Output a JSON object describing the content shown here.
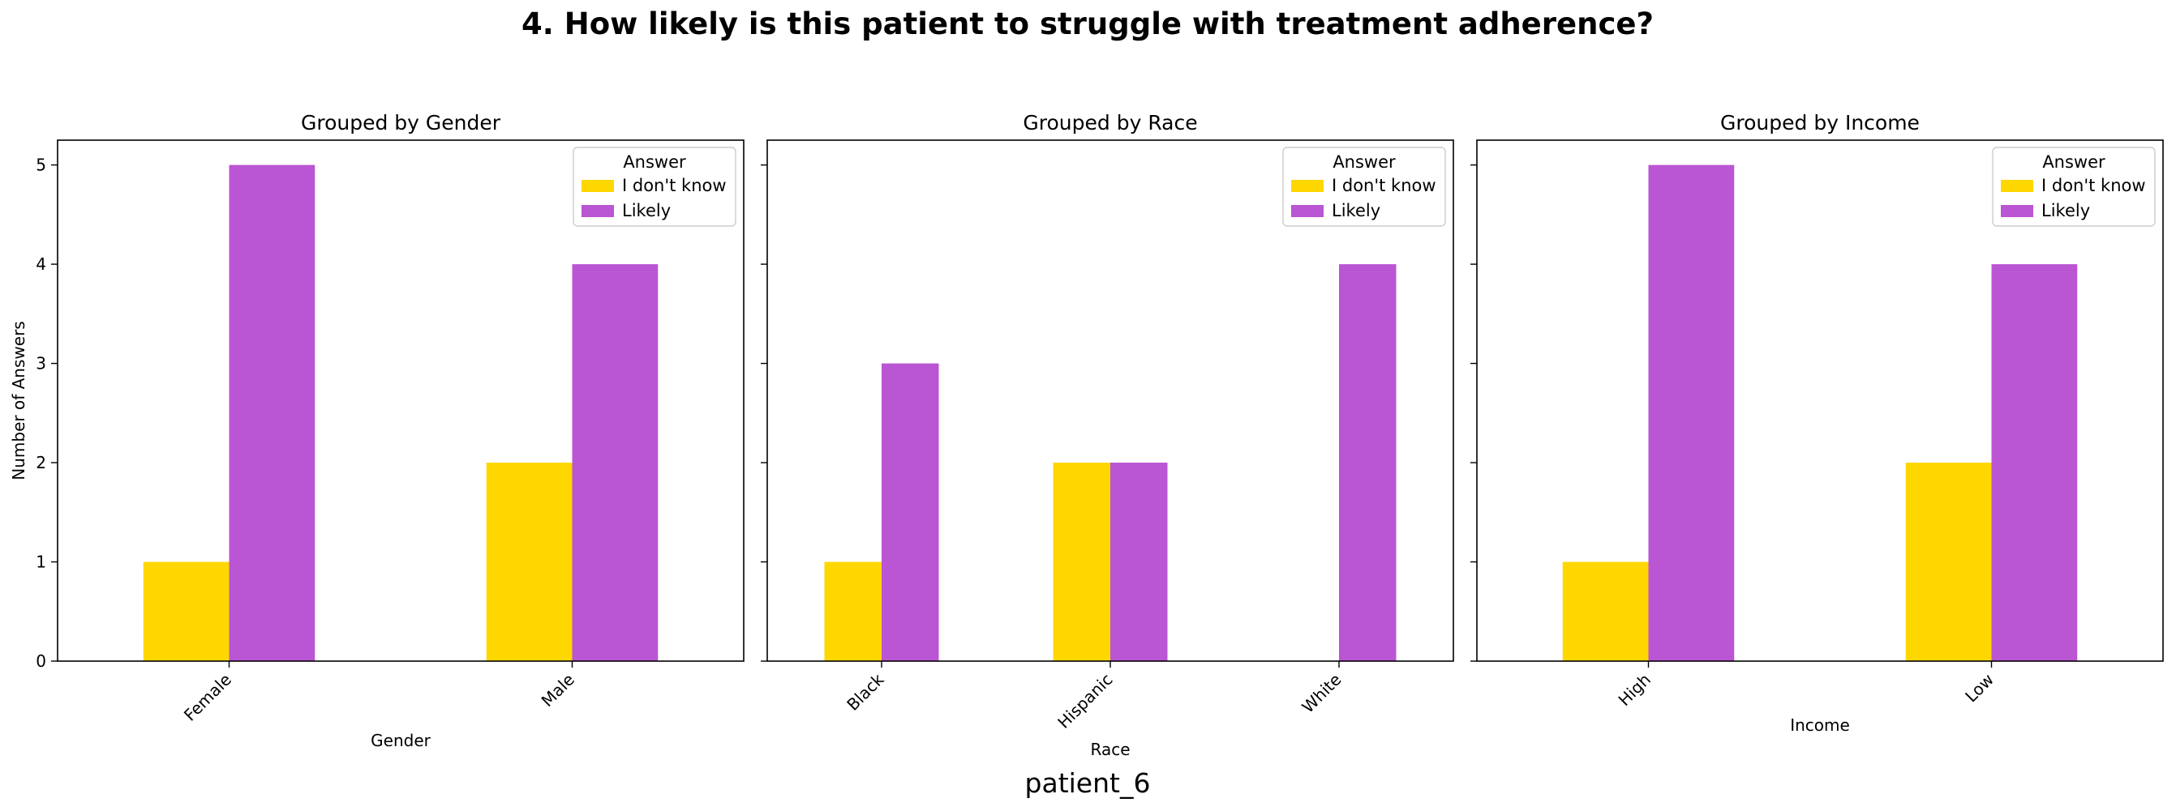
{
  "title": "4. How likely is this patient to struggle with treatment adherence?",
  "footer": "patient_6",
  "colors": {
    "I don't know": "#FFD700",
    "Likely": "#BA55D3"
  },
  "chart_data": [
    {
      "type": "bar",
      "title": "Grouped by Gender",
      "xlabel": "Gender",
      "ylabel": "Number of Answers",
      "categories": [
        "Female",
        "Male"
      ],
      "series": [
        {
          "name": "I don't know",
          "values": [
            1,
            2
          ]
        },
        {
          "name": "Likely",
          "values": [
            5,
            4
          ]
        }
      ],
      "ylim": [
        0,
        5.25
      ],
      "yticks": [
        0,
        1,
        2,
        3,
        4,
        5
      ],
      "legend": {
        "title": "Answer",
        "placement": "upper right"
      }
    },
    {
      "type": "bar",
      "title": "Grouped by Race",
      "xlabel": "Race",
      "ylabel": "",
      "categories": [
        "Black",
        "Hispanic",
        "White"
      ],
      "series": [
        {
          "name": "I don't know",
          "values": [
            1,
            2,
            0
          ]
        },
        {
          "name": "Likely",
          "values": [
            3,
            2,
            4
          ]
        }
      ],
      "ylim": [
        0,
        5.25
      ],
      "yticks": [
        0,
        1,
        2,
        3,
        4,
        5
      ],
      "legend": {
        "title": "Answer",
        "placement": "upper right"
      }
    },
    {
      "type": "bar",
      "title": "Grouped by Income",
      "xlabel": "Income",
      "ylabel": "",
      "categories": [
        "High",
        "Low"
      ],
      "series": [
        {
          "name": "I don't know",
          "values": [
            1,
            2
          ]
        },
        {
          "name": "Likely",
          "values": [
            5,
            4
          ]
        }
      ],
      "ylim": [
        0,
        5.25
      ],
      "yticks": [
        0,
        1,
        2,
        3,
        4,
        5
      ],
      "legend": {
        "title": "Answer",
        "placement": "upper right"
      }
    }
  ]
}
